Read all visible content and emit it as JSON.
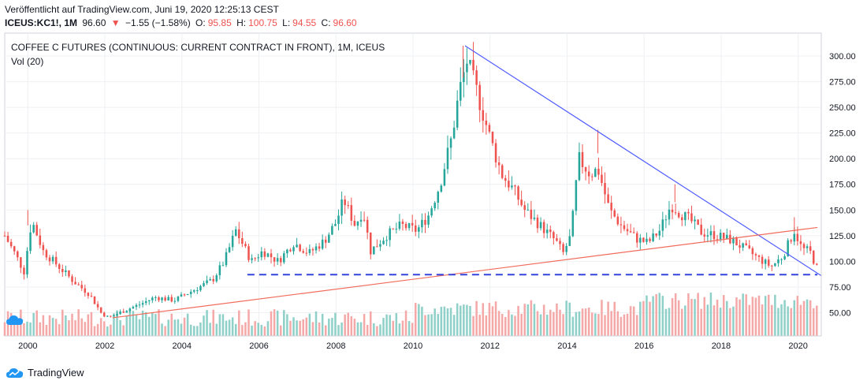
{
  "header": {
    "published": "Veröffentlicht auf TradingView.com, Juni 19, 2020 12:25:13 CEST",
    "symbol": "ICEUS:KC1!, 1M",
    "last": "96.60",
    "arrow": "▼",
    "change": "−1.55 (−1.58%)",
    "o_label": "O:",
    "o": "95.85",
    "h_label": "H:",
    "h": "100.75",
    "l_label": "L:",
    "l": "94.55",
    "c_label": "C:",
    "c": "96.60"
  },
  "chart_title": "COFFEE C FUTURES (CONTINUOUS: CURRENT CONTRACT IN FRONT), 1M, ICEUS",
  "volume_label": "Vol (20)",
  "footer": {
    "brand": "TradingView"
  },
  "colors": {
    "up": "#26a69a",
    "down": "#ef5350",
    "up_vol": "#8fd0c9",
    "down_vol": "#f4a9a8",
    "trend_down": "#4f5bff",
    "trend_up": "#f26b5b",
    "support": "#3344dd"
  },
  "chart_data": {
    "type": "candlestick",
    "interval": "1M",
    "ylim": [
      25,
      320
    ],
    "y_ticks": [
      50,
      75,
      100,
      125,
      150,
      175,
      200,
      225,
      250,
      275,
      300
    ],
    "y_tick_labels": [
      "50.00",
      "75.00",
      "100.00",
      "125.00",
      "150.00",
      "175.00",
      "200.00",
      "225.00",
      "250.00",
      "275.00",
      "300.00"
    ],
    "x_range": [
      1999.4,
      2020.6
    ],
    "x_ticks": [
      2000,
      2002,
      2004,
      2006,
      2008,
      2010,
      2012,
      2014,
      2016,
      2018,
      2020
    ],
    "x_tick_labels": [
      "2000",
      "2002",
      "2004",
      "2006",
      "2008",
      "2010",
      "2012",
      "2014",
      "2016",
      "2018",
      "2020"
    ],
    "price_path": [
      [
        1999.4,
        125
      ],
      [
        1999.7,
        105
      ],
      [
        1999.9,
        90
      ],
      [
        2000.1,
        140
      ],
      [
        2000.4,
        110
      ],
      [
        2000.8,
        95
      ],
      [
        2001.2,
        80
      ],
      [
        2001.6,
        68
      ],
      [
        2001.9,
        50
      ],
      [
        2002.1,
        45
      ],
      [
        2002.5,
        52
      ],
      [
        2002.9,
        58
      ],
      [
        2003.3,
        65
      ],
      [
        2003.8,
        62
      ],
      [
        2004.3,
        72
      ],
      [
        2004.8,
        82
      ],
      [
        2005.1,
        100
      ],
      [
        2005.4,
        130
      ],
      [
        2005.8,
        100
      ],
      [
        2006.1,
        110
      ],
      [
        2006.5,
        100
      ],
      [
        2006.9,
        118
      ],
      [
        2007.3,
        108
      ],
      [
        2007.7,
        120
      ],
      [
        2008.0,
        138
      ],
      [
        2008.2,
        160
      ],
      [
        2008.5,
        135
      ],
      [
        2008.7,
        150
      ],
      [
        2008.9,
        110
      ],
      [
        2009.3,
        125
      ],
      [
        2009.7,
        135
      ],
      [
        2010.1,
        130
      ],
      [
        2010.4,
        145
      ],
      [
        2010.7,
        175
      ],
      [
        2011.0,
        220
      ],
      [
        2011.2,
        265
      ],
      [
        2011.4,
        295
      ],
      [
        2011.7,
        260
      ],
      [
        2012.0,
        220
      ],
      [
        2012.3,
        185
      ],
      [
        2012.6,
        170
      ],
      [
        2012.9,
        150
      ],
      [
        2013.3,
        135
      ],
      [
        2013.7,
        120
      ],
      [
        2013.9,
        108
      ],
      [
        2014.1,
        125
      ],
      [
        2014.3,
        200
      ],
      [
        2014.6,
        185
      ],
      [
        2014.8,
        190
      ],
      [
        2015.1,
        150
      ],
      [
        2015.4,
        135
      ],
      [
        2015.8,
        122
      ],
      [
        2016.1,
        118
      ],
      [
        2016.4,
        130
      ],
      [
        2016.7,
        155
      ],
      [
        2016.9,
        148
      ],
      [
        2017.2,
        140
      ],
      [
        2017.5,
        128
      ],
      [
        2017.9,
        125
      ],
      [
        2018.3,
        120
      ],
      [
        2018.7,
        110
      ],
      [
        2019.0,
        102
      ],
      [
        2019.3,
        95
      ],
      [
        2019.6,
        105
      ],
      [
        2019.9,
        130
      ],
      [
        2020.1,
        112
      ],
      [
        2020.3,
        110
      ],
      [
        2020.45,
        96.6
      ]
    ],
    "highs_marked": [
      [
        2000.0,
        150
      ],
      [
        2011.3,
        310
      ],
      [
        2014.8,
        228
      ],
      [
        2016.8,
        175
      ],
      [
        2019.9,
        143
      ]
    ],
    "volume_scale_note": "volume bars drawn in lower band, no axis",
    "annotations": [
      {
        "type": "trendline",
        "color": "#4f5bff",
        "from": [
          2011.35,
          310
        ],
        "to": [
          2020.6,
          86
        ]
      },
      {
        "type": "trendline",
        "color": "#f26b5b",
        "from": [
          2002.2,
          45
        ],
        "to": [
          2020.5,
          133
        ]
      },
      {
        "type": "hline_dashed",
        "color": "#3344dd",
        "y": 87,
        "from_x": 2005.7,
        "to_x": 2020.5
      }
    ]
  }
}
